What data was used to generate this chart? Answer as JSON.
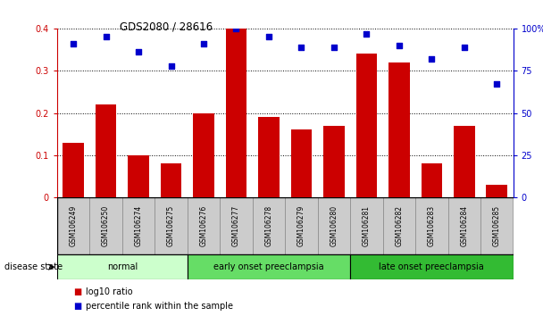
{
  "title": "GDS2080 / 28616",
  "samples": [
    "GSM106249",
    "GSM106250",
    "GSM106274",
    "GSM106275",
    "GSM106276",
    "GSM106277",
    "GSM106278",
    "GSM106279",
    "GSM106280",
    "GSM106281",
    "GSM106282",
    "GSM106283",
    "GSM106284",
    "GSM106285"
  ],
  "log10_ratio": [
    0.13,
    0.22,
    0.1,
    0.08,
    0.2,
    0.4,
    0.19,
    0.16,
    0.17,
    0.34,
    0.32,
    0.08,
    0.17,
    0.03
  ],
  "percentile_rank": [
    91,
    95,
    86,
    78,
    91,
    100,
    95,
    89,
    89,
    97,
    90,
    82,
    89,
    67
  ],
  "groups": [
    {
      "label": "normal",
      "start": 0,
      "end": 4,
      "color": "#ccffcc"
    },
    {
      "label": "early onset preeclampsia",
      "start": 4,
      "end": 9,
      "color": "#66dd66"
    },
    {
      "label": "late onset preeclampsia",
      "start": 9,
      "end": 14,
      "color": "#33bb33"
    }
  ],
  "bar_color": "#cc0000",
  "dot_color": "#0000cc",
  "ylim_left": [
    0,
    0.4
  ],
  "ylim_right": [
    0,
    100
  ],
  "yticks_left": [
    0,
    0.1,
    0.2,
    0.3,
    0.4
  ],
  "yticks_right": [
    0,
    25,
    50,
    75,
    100
  ],
  "ytick_labels_right": [
    "0",
    "25",
    "50",
    "75",
    "100%"
  ],
  "legend_bar": "log10 ratio",
  "legend_dot": "percentile rank within the sample",
  "disease_state_label": "disease state",
  "bg_color": "#ffffff",
  "tick_label_area_color": "#cccccc"
}
